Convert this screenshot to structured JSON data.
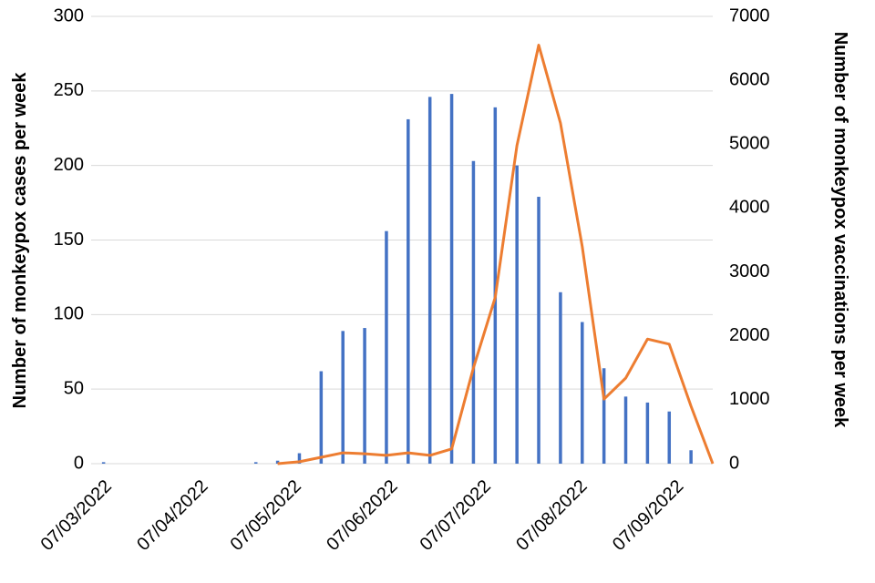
{
  "chart_data": {
    "type": "bar-line",
    "x": [
      "2022-03-07",
      "2022-04-25",
      "2022-05-02",
      "2022-05-09",
      "2022-05-16",
      "2022-05-23",
      "2022-05-30",
      "2022-06-06",
      "2022-06-13",
      "2022-06-20",
      "2022-06-27",
      "2022-07-04",
      "2022-07-11",
      "2022-07-18",
      "2022-07-25",
      "2022-08-01",
      "2022-08-08",
      "2022-08-15",
      "2022-08-22",
      "2022-08-29",
      "2022-09-05",
      "2022-09-12",
      "2022-09-19"
    ],
    "series": [
      {
        "name": "Cases",
        "type": "bar",
        "color": "#4472c4",
        "values": [
          1,
          1,
          2,
          7,
          62,
          89,
          91,
          156,
          231,
          246,
          248,
          203,
          239,
          200,
          179,
          115,
          95,
          64,
          45,
          41,
          35,
          9,
          0
        ]
      },
      {
        "name": "Vaccinations",
        "type": "line",
        "axis": "y2",
        "color": "#ed7d31",
        "values": [
          null,
          null,
          0,
          30,
          100,
          170,
          155,
          130,
          170,
          130,
          230,
          1500,
          2600,
          4980,
          6550,
          5330,
          3400,
          1010,
          1340,
          1950,
          1870,
          900,
          0
        ]
      }
    ],
    "y_label": "Number of monkeypox cases per week",
    "y2_label": "Number of monkeypox vaccinations per week",
    "xlim": [
      "2022-03-03",
      "2022-09-19"
    ],
    "xticks": [
      {
        "value": "2022-03-07",
        "label": "07/03/2022"
      },
      {
        "value": "2022-04-07",
        "label": "07/04/2022"
      },
      {
        "value": "2022-05-07",
        "label": "07/05/2022"
      },
      {
        "value": "2022-06-07",
        "label": "07/06/2022"
      },
      {
        "value": "2022-07-07",
        "label": "07/07/2022"
      },
      {
        "value": "2022-08-07",
        "label": "07/08/2022"
      },
      {
        "value": "2022-09-07",
        "label": "07/09/2022"
      }
    ],
    "ylim": [
      0,
      300
    ],
    "yticks": [
      0,
      50,
      100,
      150,
      200,
      250,
      300
    ],
    "y2lim": [
      0,
      7000
    ],
    "y2ticks": [
      0,
      1000,
      2000,
      3000,
      4000,
      5000,
      6000,
      7000
    ],
    "grid": true
  }
}
